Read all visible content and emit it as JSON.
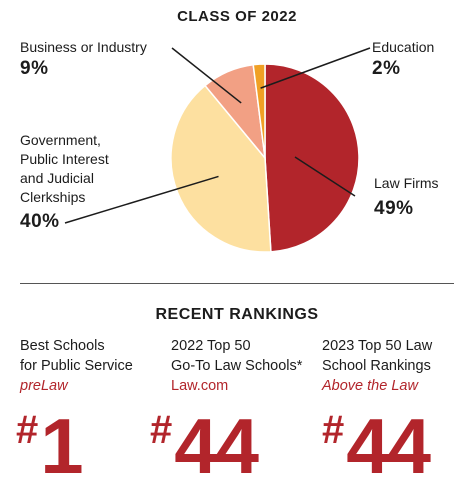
{
  "class_title": "CLASS OF 2022",
  "rankings_title": "RECENT RANKINGS",
  "chart_data": {
    "type": "pie",
    "title": "CLASS OF 2022",
    "slices": [
      {
        "name": "Law Firms",
        "value": 49,
        "percent_label": "49%",
        "color": "#b2252b",
        "label_lines": [
          "Law Firms"
        ]
      },
      {
        "name": "Government, Public Interest and Judicial Clerkships",
        "value": 40,
        "percent_label": "40%",
        "color": "#fde0a0",
        "label_lines": [
          "Government,",
          "Public Interest",
          "and Judicial",
          "Clerkships"
        ]
      },
      {
        "name": "Business or Industry",
        "value": 9,
        "percent_label": "9%",
        "color": "#f2a084",
        "label_lines": [
          "Business or Industry"
        ]
      },
      {
        "name": "Education",
        "value": 2,
        "percent_label": "2%",
        "color": "#f0a025",
        "label_lines": [
          "Education"
        ]
      }
    ],
    "start_angle_deg": 0,
    "direction": "clockwise"
  },
  "rankings": [
    {
      "lines": [
        "Best Schools",
        "for Public Service"
      ],
      "source": "preLaw",
      "source_italic": true,
      "rank": "1"
    },
    {
      "lines": [
        "2022 Top 50",
        "Go-To Law Schools*"
      ],
      "source": "Law.com",
      "source_italic": false,
      "rank": "44"
    },
    {
      "lines": [
        "2023 Top 50 Law",
        "School Rankings"
      ],
      "source": "Above the Law",
      "source_italic": true,
      "rank": "44"
    }
  ],
  "colors": {
    "accent": "#b2252b",
    "text": "#1c1c1c"
  }
}
